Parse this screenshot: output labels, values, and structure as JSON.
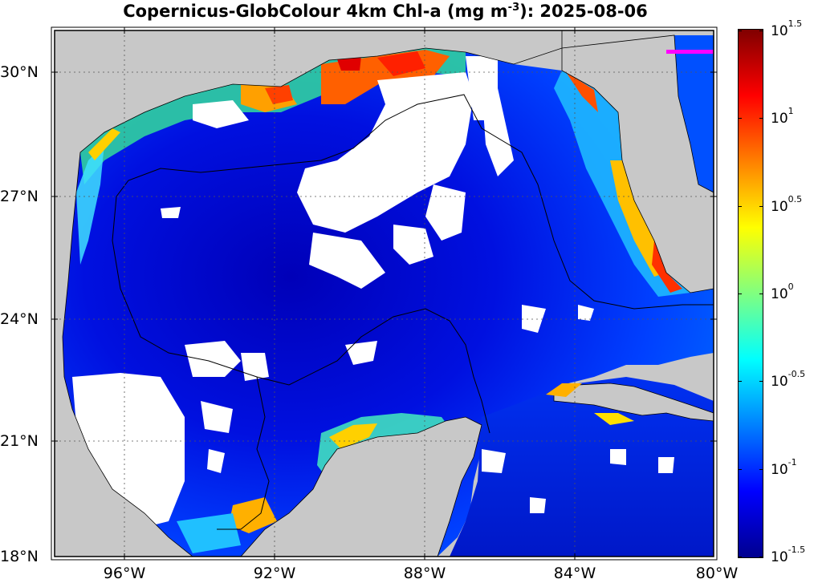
{
  "title": {
    "prefix": "Copernicus-GlobColour 4km Chl-a (mg m",
    "exponent": "-3",
    "suffix": "): 2025-08-06"
  },
  "map": {
    "region": "Gulf of Mexico",
    "lon_range": [
      -98,
      -80
    ],
    "lat_range": [
      18,
      31
    ],
    "x_ticks": [
      "96°W",
      "92°W",
      "88°W",
      "84°W",
      "80°W"
    ],
    "y_ticks": [
      "30°N",
      "27°N",
      "24°N",
      "21°N",
      "18°N"
    ],
    "land_color": "#c8c8c8",
    "no_data_color": "#ffffff",
    "grid": "dotted"
  },
  "colorbar": {
    "scale": "log10",
    "range": [
      0.0316,
      31.6
    ],
    "colormap": "jet",
    "ticks": [
      {
        "base": "10",
        "exp": "1.5"
      },
      {
        "base": "10",
        "exp": "1"
      },
      {
        "base": "10",
        "exp": "0.5"
      },
      {
        "base": "10",
        "exp": "0"
      },
      {
        "base": "10",
        "exp": "-0.5"
      },
      {
        "base": "10",
        "exp": "-1"
      },
      {
        "base": "10",
        "exp": "-1.5"
      }
    ]
  }
}
